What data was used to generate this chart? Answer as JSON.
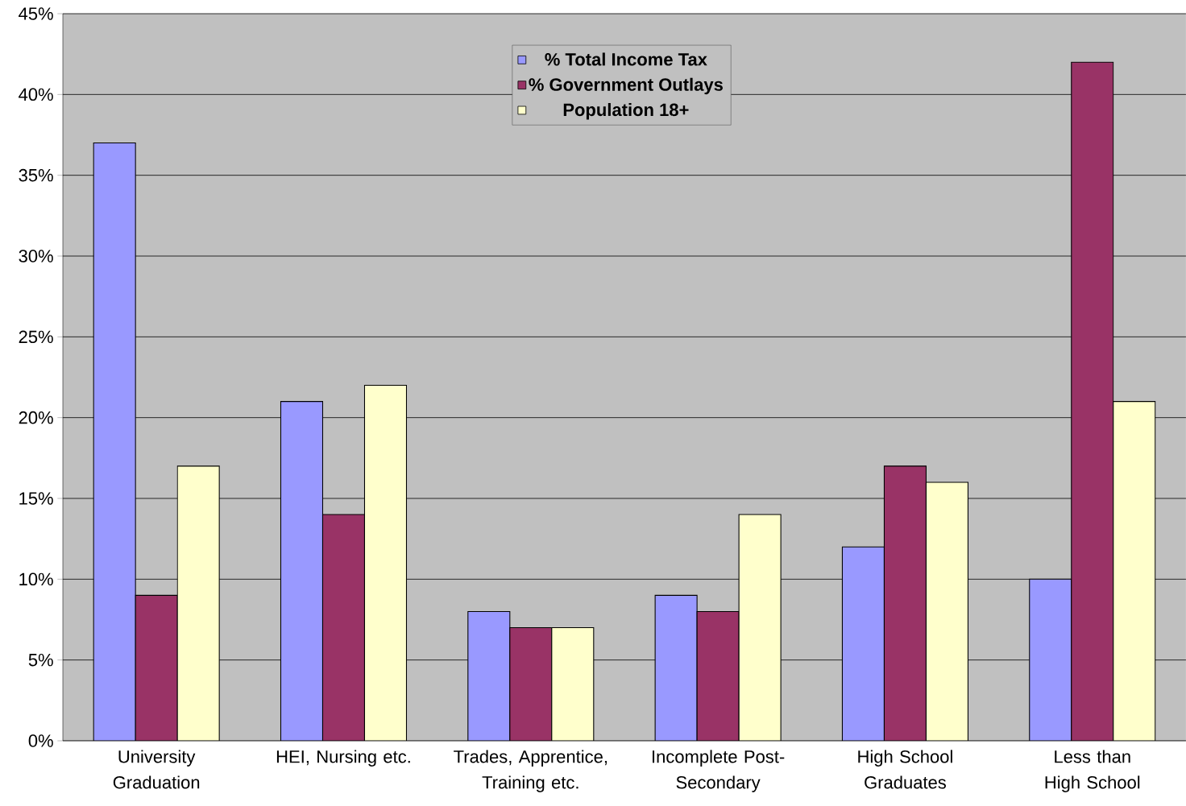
{
  "chart_data": {
    "type": "bar",
    "categories": [
      "University Graduation",
      "HEI, Nursing etc.",
      "Trades, Apprentice, Training etc.",
      "Incomplete Post-Secondary",
      "High School Graduates",
      "Less than High School"
    ],
    "series": [
      {
        "name": "% Total Income Tax",
        "color": "#9999ff",
        "values": [
          37,
          21,
          8,
          9,
          12,
          10
        ]
      },
      {
        "name": "% Government Outlays",
        "color": "#993366",
        "values": [
          9,
          14,
          7,
          8,
          17,
          42
        ]
      },
      {
        "name": "Population 18+",
        "color": "#ffffcc",
        "values": [
          17,
          22,
          7,
          14,
          16,
          21
        ]
      }
    ],
    "ylim": [
      0,
      45
    ],
    "yticks": [
      {
        "value": 0,
        "label": "0%"
      },
      {
        "value": 5,
        "label": "5%"
      },
      {
        "value": 10,
        "label": "10%"
      },
      {
        "value": 15,
        "label": "15%"
      },
      {
        "value": 20,
        "label": "20%"
      },
      {
        "value": 25,
        "label": "25%"
      },
      {
        "value": 30,
        "label": "30%"
      },
      {
        "value": 35,
        "label": "35%"
      },
      {
        "value": 40,
        "label": "40%"
      },
      {
        "value": 45,
        "label": "45%"
      }
    ],
    "grid": "y",
    "legend": "top"
  }
}
